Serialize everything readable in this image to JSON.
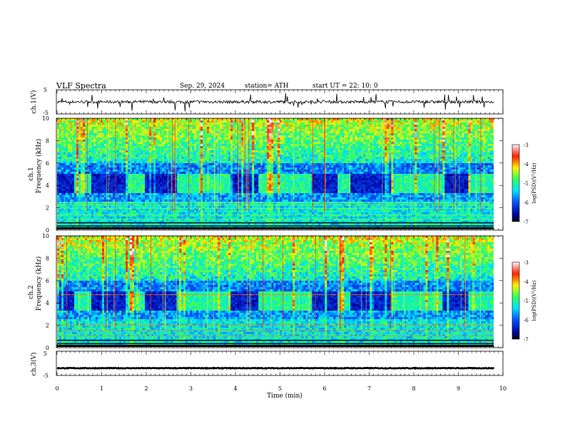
{
  "header": {
    "title": "VLF  Spectra",
    "date": "Sep. 29, 2024",
    "station": "station= ATH",
    "start": "start  UT  =   22: 10: 0"
  },
  "chart_data": [
    {
      "type": "line",
      "name": "ch1-voltage",
      "ylabel": "ch.1(V)",
      "ylim": [
        -5,
        5
      ],
      "yticks": [
        "5",
        "-5"
      ],
      "xlim": [
        0,
        10
      ],
      "mean": 0.0,
      "noise_amplitude": 0.6,
      "color": "#000000"
    },
    {
      "type": "heatmap",
      "name": "ch1-spectrogram",
      "ylabel_top": "ch.1",
      "ylabel": "Frequency  (kHz)",
      "ylim": [
        0,
        10
      ],
      "yticks": [
        "0",
        "2",
        "4",
        "6",
        "8",
        "10"
      ],
      "xlim": [
        0,
        9.8
      ],
      "colorbar": {
        "label": "log(PSD)(V²/Hz)",
        "ticks": [
          "-3",
          "-4",
          "-5",
          "-6",
          "-7"
        ],
        "range": [
          -7,
          -3
        ]
      },
      "strong_bands_khz": [
        0.1,
        0.3,
        0.6,
        0.9,
        1.3,
        1.9,
        2.2,
        2.4
      ],
      "activity_intervals_min": [
        [
          0.4,
          0.75
        ],
        [
          1.6,
          1.95
        ],
        [
          2.7,
          3.9
        ],
        [
          4.5,
          5.7
        ],
        [
          6.3,
          6.6
        ],
        [
          7.5,
          8.65
        ],
        [
          9.2,
          9.8
        ]
      ]
    },
    {
      "type": "heatmap",
      "name": "ch2-spectrogram",
      "ylabel_top": "ch.2",
      "ylabel": "Frequency  (kHz)",
      "ylim": [
        0,
        10
      ],
      "yticks": [
        "0",
        "2",
        "4",
        "6",
        "8",
        "10"
      ],
      "xlim": [
        0,
        9.8
      ],
      "colorbar": {
        "label": "log(PSD)(V²/Hz)",
        "ticks": [
          "-3",
          "-4",
          "-5",
          "-6",
          "-7"
        ],
        "range": [
          -7,
          -3
        ]
      },
      "strong_bands_khz": [
        0.1,
        0.3,
        0.6,
        1.0,
        1.5,
        2.0,
        4.7
      ],
      "activity_intervals_min": [
        [
          0.4,
          0.75
        ],
        [
          1.6,
          1.95
        ],
        [
          2.7,
          3.9
        ],
        [
          4.5,
          5.7
        ],
        [
          6.3,
          6.6
        ],
        [
          7.5,
          8.65
        ],
        [
          9.2,
          9.8
        ]
      ]
    },
    {
      "type": "line",
      "name": "ch3-voltage",
      "ylabel": "ch.3(V)",
      "ylim": [
        -5,
        5
      ],
      "yticks": [
        "5",
        "-5"
      ],
      "xlim": [
        0,
        10
      ],
      "mean": -2.0,
      "noise_amplitude": 0.15,
      "color": "#000000"
    }
  ],
  "xaxis": {
    "label": "Time  (min)",
    "range": [
      0,
      10
    ],
    "ticks": [
      "0",
      "1",
      "2",
      "3",
      "4",
      "5",
      "6",
      "7",
      "8",
      "9",
      "10"
    ]
  }
}
